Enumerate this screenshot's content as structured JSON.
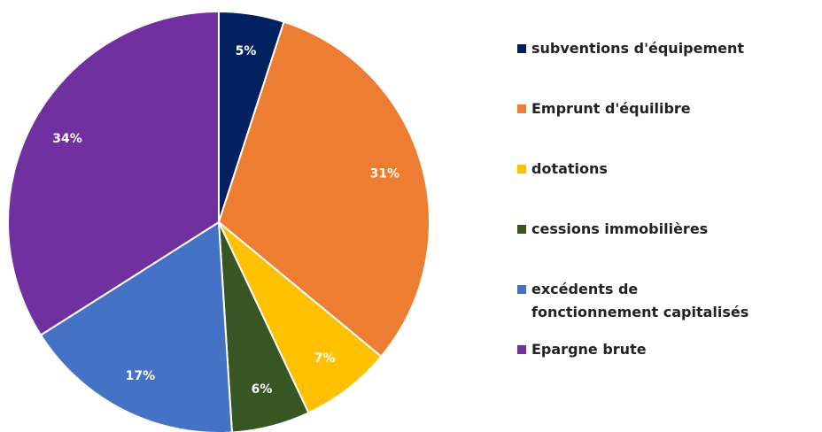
{
  "chart_data": {
    "type": "pie",
    "categories": [
      "subventions d'équipement",
      "Emprunt d'équilibre",
      "dotations",
      "cessions immobilières",
      "excédents de fonctionnement capitalisés",
      "Epargne brute"
    ],
    "values": [
      5,
      31,
      7,
      6,
      17,
      34
    ],
    "value_labels": [
      "5%",
      "31%",
      "7%",
      "6%",
      "17%",
      "34%"
    ],
    "colors": [
      "#002060",
      "#ed7d31",
      "#ffc000",
      "#375623",
      "#4472c4",
      "#7030a0"
    ],
    "legend": "right"
  }
}
